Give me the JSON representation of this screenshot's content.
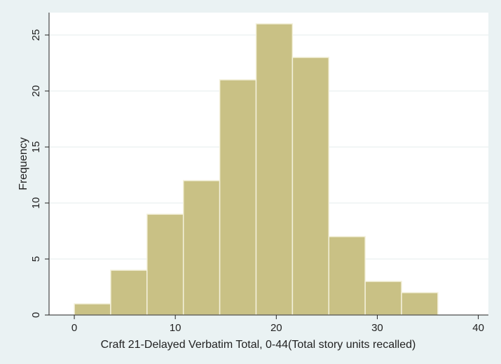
{
  "chart_data": {
    "type": "bar",
    "histogram": true,
    "bin_width": 3.6,
    "bins": [
      {
        "x0": 0.0,
        "x1": 3.6,
        "value": 1
      },
      {
        "x0": 3.6,
        "x1": 7.2,
        "value": 4
      },
      {
        "x0": 7.2,
        "x1": 10.8,
        "value": 9
      },
      {
        "x0": 10.8,
        "x1": 14.4,
        "value": 12
      },
      {
        "x0": 14.4,
        "x1": 18.0,
        "value": 21
      },
      {
        "x0": 18.0,
        "x1": 21.6,
        "value": 26
      },
      {
        "x0": 21.6,
        "x1": 25.2,
        "value": 23
      },
      {
        "x0": 25.2,
        "x1": 28.8,
        "value": 7
      },
      {
        "x0": 28.8,
        "x1": 32.4,
        "value": 3
      },
      {
        "x0": 32.4,
        "x1": 36.0,
        "value": 2
      }
    ],
    "xlabel": "Craft 21-Delayed Verbatim Total, 0-44(Total story units recalled)",
    "ylabel": "Frequency",
    "xlim": [
      -2.5,
      41
    ],
    "ylim": [
      0,
      27
    ],
    "xticks": [
      0,
      10,
      20,
      30,
      40
    ],
    "yticks": [
      0,
      5,
      10,
      15,
      20,
      25
    ],
    "grid": "horizontal",
    "legend": "none"
  },
  "colors": {
    "background": "#eaf2f3",
    "plot_area": "#ffffff",
    "bar_fill": "#c9c185",
    "bar_stroke": "#f4f1dc",
    "grid": "#e6ecec",
    "axis": "#222222"
  }
}
